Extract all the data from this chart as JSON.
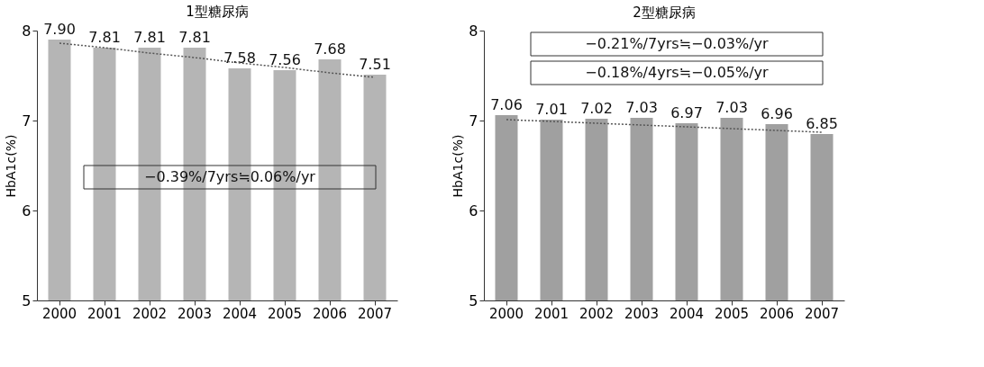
{
  "chart_data": [
    {
      "type": "bar",
      "title": "1型糖尿病",
      "ylabel": "HbA1c(%)",
      "categories": [
        "2000",
        "2001",
        "2002",
        "2003",
        "2004",
        "2005",
        "2006",
        "2007"
      ],
      "ylim": [
        5,
        8
      ],
      "yticks": [
        5,
        6,
        7,
        8
      ],
      "grid": false,
      "series": [
        {
          "color": "#b5b5b5",
          "values": [
            7.9,
            7.81,
            7.81,
            7.81,
            7.58,
            7.56,
            7.68,
            7.51
          ],
          "value_labels": [
            "7.90",
            "7.81",
            "7.81",
            "7.81",
            "7.58",
            "7.56",
            "7.68",
            "7.51"
          ]
        },
        {
          "type": "line",
          "color": "#555555",
          "line_style": "dotted",
          "values": [
            7.86,
            7.81,
            7.75,
            7.7,
            7.64,
            7.59,
            7.53,
            7.48
          ]
        }
      ],
      "annotations": [
        "−0.39%/7yrs≒0.06%/yr"
      ]
    },
    {
      "type": "bar",
      "title": "2型糖尿病",
      "ylabel": "HbA1c(%)",
      "categories": [
        "2000",
        "2001",
        "2002",
        "2003",
        "2004",
        "2005",
        "2006",
        "2007"
      ],
      "ylim": [
        5,
        8
      ],
      "yticks": [
        5,
        6,
        7,
        8
      ],
      "grid": false,
      "series": [
        {
          "color": "#a0a0a0",
          "values": [
            7.06,
            7.01,
            7.02,
            7.03,
            6.97,
            7.03,
            6.96,
            6.85
          ],
          "value_labels": [
            "7.06",
            "7.01",
            "7.02",
            "7.03",
            "6.97",
            "7.03",
            "6.96",
            "6.85"
          ]
        },
        {
          "type": "line",
          "color": "#555555",
          "line_style": "dotted",
          "values": [
            7.01,
            6.99,
            6.97,
            6.95,
            6.93,
            6.91,
            6.89,
            6.87
          ]
        }
      ],
      "annotations": [
        "−0.21%/7yrs≒−0.03%/yr",
        "−0.18%/4yrs≒−0.05%/yr"
      ]
    }
  ]
}
